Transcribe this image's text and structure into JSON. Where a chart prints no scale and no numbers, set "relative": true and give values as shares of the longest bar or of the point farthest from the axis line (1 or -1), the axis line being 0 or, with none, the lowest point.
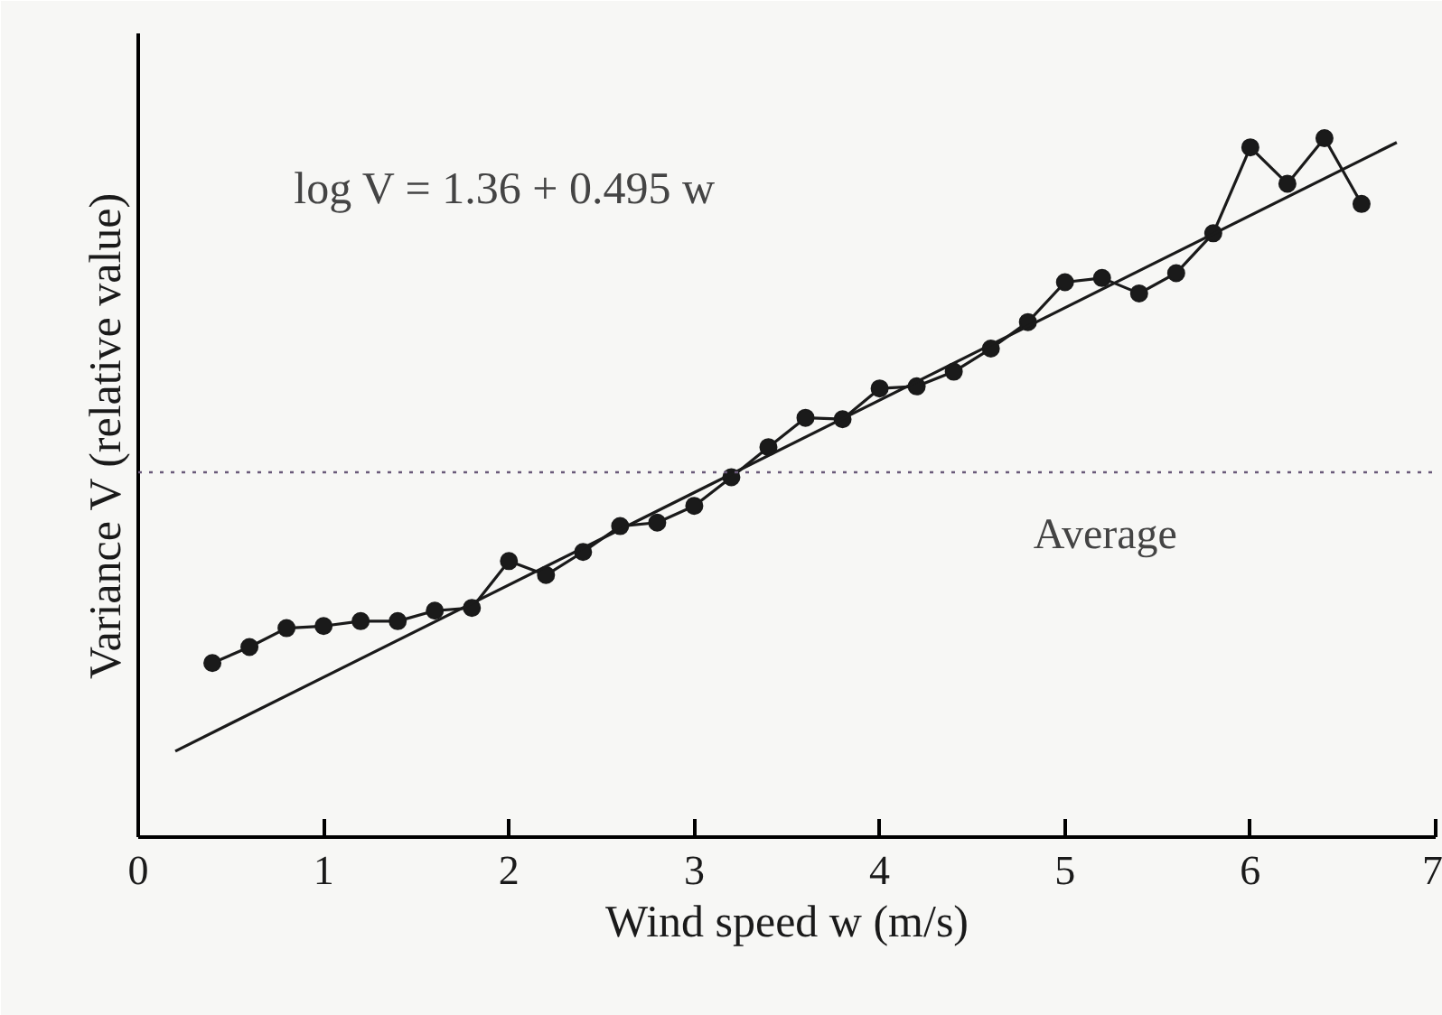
{
  "chart_data": {
    "type": "line",
    "relative": true,
    "xlabel": "Wind speed w (m/s)",
    "ylabel": "Variance V (relative value)",
    "x": [
      0.4,
      0.6,
      0.8,
      1.0,
      1.2,
      1.4,
      1.6,
      1.8,
      2.0,
      2.2,
      2.4,
      2.6,
      2.8,
      3.0,
      3.2,
      3.4,
      3.6,
      3.8,
      4.0,
      4.2,
      4.4,
      4.6,
      4.8,
      5.0,
      5.2,
      5.4,
      5.6,
      5.8,
      6.0,
      6.2,
      6.4,
      6.6
    ],
    "xlim": [
      0,
      7
    ],
    "xticks": [
      0,
      1,
      2,
      3,
      4,
      5,
      6,
      7
    ],
    "series": [
      {
        "color": "#1a1a1a",
        "marker": "circle",
        "values": [
          0.249,
          0.272,
          0.299,
          0.302,
          0.309,
          0.309,
          0.324,
          0.328,
          0.395,
          0.375,
          0.408,
          0.445,
          0.45,
          0.474,
          0.515,
          0.558,
          0.6,
          0.598,
          0.642,
          0.645,
          0.666,
          0.699,
          0.737,
          0.794,
          0.8,
          0.778,
          0.807,
          0.864,
          0.987,
          0.935,
          1.0,
          0.906
        ]
      },
      {
        "type": "line",
        "color": "#1a1a1a",
        "marker": "none",
        "x": [
          0.2,
          6.79
        ],
        "values": [
          0.123,
          0.994
        ]
      }
    ],
    "ref_lines": [
      {
        "axis": "y",
        "value": 0.522,
        "label": "Average",
        "color": "#6a5a7a",
        "line_style": "dotted"
      }
    ],
    "annotations": [
      "log V = 1.36 + 0.495 w"
    ],
    "grid": false
  }
}
